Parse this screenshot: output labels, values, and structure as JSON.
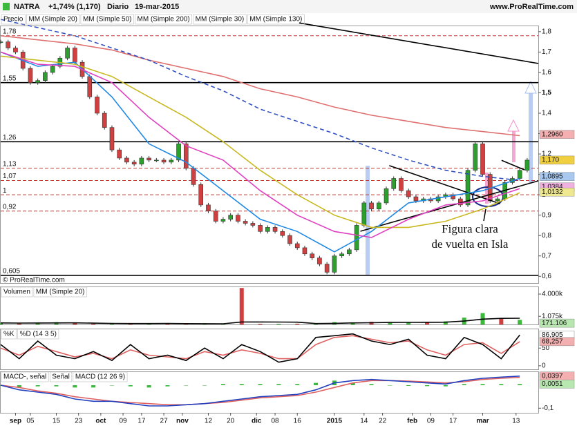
{
  "header": {
    "symbol": "NATRA",
    "change": "+1,74% (1,170)",
    "period": "Diario",
    "date": "19-mar-2015",
    "site": "www.ProRealTime.com"
  },
  "copyright": "© ProRealTime.com",
  "chart_data": [
    {
      "type": "candlestick",
      "name": "Precio",
      "up_color": "#2ca02c",
      "down_color": "#d04040",
      "x": [
        0,
        2,
        4,
        6,
        8,
        10,
        12,
        14,
        16,
        18,
        20,
        22,
        24,
        26,
        28,
        30,
        32,
        34,
        36,
        38,
        40,
        42,
        44,
        46,
        48,
        50,
        52,
        54,
        56,
        58,
        60,
        62,
        64,
        66,
        68,
        70,
        72,
        74,
        76,
        78,
        80,
        82,
        84,
        86,
        88,
        90,
        92,
        94,
        96,
        98,
        100,
        102,
        104,
        106,
        108,
        110,
        112,
        114,
        116,
        118,
        120,
        122,
        124,
        126,
        128,
        130,
        132,
        134,
        136,
        138,
        140,
        142
      ],
      "values": [
        1.75,
        1.72,
        1.7,
        1.62,
        1.55,
        1.56,
        1.6,
        1.63,
        1.67,
        1.72,
        1.65,
        1.58,
        1.48,
        1.4,
        1.33,
        1.22,
        1.18,
        1.16,
        1.15,
        1.18,
        1.17,
        1.17,
        1.16,
        1.17,
        1.25,
        1.13,
        1.05,
        0.95,
        0.92,
        0.87,
        0.88,
        0.9,
        0.87,
        0.86,
        0.85,
        0.82,
        0.84,
        0.82,
        0.8,
        0.76,
        0.74,
        0.71,
        0.69,
        0.66,
        0.62,
        0.7,
        0.71,
        0.73,
        0.85,
        0.96,
        0.93,
        0.96,
        1.03,
        1.08,
        1.02,
        0.99,
        0.97,
        0.98,
        0.97,
        0.99,
        1.0,
        0.98,
        0.95,
        1.12,
        1.25,
        1.1,
        0.97,
        0.98,
        1.06,
        1.08,
        1.12,
        1.17
      ],
      "xlim": [
        0,
        145
      ],
      "ylim": [
        0.567,
        1.83
      ],
      "yticks": [
        {
          "value": 0.6,
          "label": "0,6"
        },
        {
          "value": 0.7,
          "label": "0,7"
        },
        {
          "value": 0.8,
          "label": "0,8"
        },
        {
          "value": 0.9,
          "label": "0,9"
        },
        {
          "value": 1,
          "label": "1"
        },
        {
          "value": 1.1,
          "label": "1,1"
        },
        {
          "value": 1.2,
          "label": "1,2"
        },
        {
          "value": 1.3,
          "label": "1,3"
        },
        {
          "value": 1.4,
          "label": "1,4"
        },
        {
          "value": 1.5,
          "label": "1,5"
        },
        {
          "value": 1.6,
          "label": "1,6"
        },
        {
          "value": 1.7,
          "label": "1,7"
        },
        {
          "value": 1.8,
          "label": "1,8"
        }
      ],
      "levels": [
        {
          "value": 1.78,
          "label": "1,78",
          "color": "#d03030",
          "dashed": true
        },
        {
          "value": 1.55,
          "label": "1,55",
          "color": "#000000",
          "dashed": false
        },
        {
          "value": 1.26,
          "label": "1,26",
          "color": "#000000",
          "dashed": false
        },
        {
          "value": 1.13,
          "label": "1,13",
          "color": "#d03030",
          "dashed": true
        },
        {
          "value": 1.07,
          "label": "1,07",
          "color": "#d03030",
          "dashed": true
        },
        {
          "value": 1,
          "label": "1",
          "color": "#d03030",
          "dashed": true
        },
        {
          "value": 0.92,
          "label": "0,92",
          "color": "#d03030",
          "dashed": true
        },
        {
          "value": 0.605,
          "label": "0,605",
          "color": "#000000",
          "dashed": false
        }
      ],
      "tags": [
        {
          "value": 1.296,
          "label": "1,2960",
          "color": "#f4b0b0"
        },
        {
          "value": 1.17,
          "label": "1,170",
          "color": "#f0d040"
        },
        {
          "value": 1.0895,
          "label": "1,0895",
          "color": "#a8c8f0"
        },
        {
          "value": 1.0384,
          "label": "1,0384",
          "color": "#f0b0e0"
        },
        {
          "value": 1.0132,
          "label": "1,0132",
          "color": "#f0e890"
        }
      ],
      "trendlines": [
        {
          "x": [
            80.5,
            145
          ],
          "y": [
            1.843,
            1.644
          ]
        },
        {
          "x": [
            97,
            145
          ],
          "y": [
            0.821,
            1.068
          ]
        },
        {
          "x": [
            104.8,
            134.7
          ],
          "y": [
            1.143,
            0.956
          ]
        },
        {
          "x": [
            135.1,
            141.3
          ],
          "y": [
            1.169,
            1.122
          ]
        }
      ],
      "annotation": [
        "Figura clara",
        "de vuelta en Isla"
      ]
    },
    {
      "type": "line",
      "x": [
        0,
        10,
        20,
        30,
        40,
        50,
        60,
        70,
        80,
        90,
        100,
        110,
        120,
        130,
        140
      ],
      "xlim": [
        0,
        145
      ],
      "ylim": [
        0.567,
        1.83
      ],
      "series": [
        {
          "name": "MM (Simple 20)",
          "color": "#1e88e5",
          "dashed": false,
          "values": [
            1.7,
            1.63,
            1.65,
            1.48,
            1.25,
            1.16,
            1.02,
            0.88,
            0.82,
            0.72,
            0.82,
            0.96,
            0.99,
            1.02,
            1.08
          ]
        },
        {
          "name": "MM (Simple 50)",
          "color": "#c8b820",
          "dashed": false,
          "values": [
            1.68,
            1.66,
            1.64,
            1.58,
            1.48,
            1.38,
            1.26,
            1.12,
            1.0,
            0.9,
            0.84,
            0.84,
            0.87,
            0.93,
            1.01
          ]
        },
        {
          "name": "MM (Simple 200)",
          "color": "#e07070",
          "dashed": false,
          "values": [
            1.78,
            1.76,
            1.74,
            1.71,
            1.66,
            1.62,
            1.58,
            1.52,
            1.48,
            1.43,
            1.39,
            1.36,
            1.33,
            1.31,
            1.29
          ]
        },
        {
          "name": "MM (Simple 30)",
          "color": "#e040c0",
          "dashed": false,
          "values": [
            1.7,
            1.64,
            1.63,
            1.55,
            1.38,
            1.24,
            1.17,
            1.02,
            0.9,
            0.82,
            0.79,
            0.88,
            0.95,
            0.97,
            1.03
          ]
        },
        {
          "name": "MM (Simple 130)",
          "color": "#3050c0",
          "dashed": true,
          "values": [
            1.86,
            1.82,
            1.78,
            1.72,
            1.66,
            1.58,
            1.51,
            1.42,
            1.36,
            1.3,
            1.23,
            1.17,
            1.12,
            1.09,
            1.07
          ]
        }
      ]
    },
    {
      "type": "bar",
      "name": "Volumen",
      "name_color": "#2a9a2a",
      "color": "#3cb83c",
      "x": [
        0,
        5,
        10,
        15,
        20,
        25,
        30,
        35,
        40,
        45,
        50,
        55,
        60,
        65,
        70,
        75,
        80,
        85,
        90,
        95,
        100,
        105,
        110,
        115,
        120,
        125,
        130,
        135,
        140
      ],
      "values": [
        150000,
        120000,
        200000,
        300000,
        180000,
        100000,
        90000,
        120000,
        150000,
        100000,
        90000,
        80000,
        80000,
        4800000,
        90000,
        80000,
        100000,
        120000,
        300000,
        250000,
        350000,
        200000,
        300000,
        250000,
        400000,
        900000,
        1500000,
        800000,
        600000
      ],
      "colors": [
        "#3cb83c",
        "#d04040",
        "#3cb83c",
        "#3cb83c",
        "#d04040",
        "#d04040",
        "#3cb83c",
        "#d04040",
        "#3cb83c",
        "#d04040",
        "#d04040",
        "#3cb83c",
        "#3cb83c",
        "#d04040",
        "#d04040",
        "#3cb83c",
        "#d04040",
        "#3cb83c",
        "#3cb83c",
        "#3cb83c",
        "#d04040",
        "#3cb83c",
        "#3cb83c",
        "#d04040",
        "#3cb83c",
        "#3cb83c",
        "#3cb83c",
        "#d04040",
        "#3cb83c"
      ],
      "series": [
        {
          "name": "MM (Simple 20)",
          "color": "#000000",
          "dashed": false,
          "values": [
            200000,
            180000,
            190000,
            200000,
            210000,
            170000,
            140000,
            120000,
            120000,
            130000,
            110000,
            100000,
            90000,
            330000,
            330000,
            320000,
            300000,
            120000,
            150000,
            200000,
            230000,
            260000,
            270000,
            280000,
            300000,
            450000,
            700000,
            800000,
            820000
          ]
        }
      ],
      "xlim": [
        0,
        145
      ],
      "ylim": [
        0,
        5000000
      ],
      "yticks": [
        {
          "value": 4000000,
          "label": "4.000k"
        },
        {
          "value": 1075000,
          "label": "1.075k"
        }
      ],
      "tags": [
        {
          "value": 171106,
          "label": "171.106",
          "color": "#b8e8b0"
        }
      ]
    },
    {
      "type": "line",
      "name": "%K",
      "name_color": "#000000",
      "x": [
        0,
        5,
        10,
        15,
        20,
        25,
        30,
        35,
        40,
        45,
        50,
        55,
        60,
        65,
        70,
        75,
        80,
        85,
        90,
        95,
        100,
        105,
        110,
        115,
        120,
        125,
        130,
        135,
        140
      ],
      "series": [
        {
          "name": "%D (14 3 5)",
          "color": "#e06060",
          "dashed": false,
          "values": [
            50,
            30,
            55,
            40,
            25,
            35,
            20,
            45,
            30,
            25,
            20,
            40,
            30,
            45,
            35,
            20,
            20,
            60,
            80,
            85,
            75,
            65,
            70,
            45,
            30,
            60,
            65,
            35,
            68.257
          ]
        },
        {
          "name": null,
          "color": "#000000",
          "dashed": false,
          "values": [
            60,
            20,
            70,
            30,
            20,
            40,
            15,
            60,
            20,
            30,
            15,
            50,
            20,
            60,
            40,
            10,
            20,
            80,
            85,
            90,
            70,
            60,
            75,
            30,
            20,
            80,
            60,
            20,
            86.905
          ]
        }
      ],
      "xlim": [
        0,
        145
      ],
      "ylim": [
        -10,
        105
      ],
      "yticks": [
        50,
        0
      ],
      "tags": [
        {
          "value": 86.905,
          "label": "86,905",
          "color": "#ffffff"
        },
        {
          "value": 68.257,
          "label": "68,257",
          "color": "#f4b0b0"
        }
      ]
    },
    {
      "type": "bar",
      "name": "MACD-, señal",
      "name_color": "#2a9a2a",
      "color": "#3cb83c",
      "x": [
        0,
        5,
        10,
        15,
        20,
        25,
        30,
        35,
        40,
        45,
        50,
        55,
        60,
        65,
        70,
        75,
        80,
        85,
        90,
        95,
        100,
        105,
        110,
        115,
        120,
        125,
        130,
        135,
        140
      ],
      "values": [
        0,
        -0.01,
        -0.005,
        -0.005,
        -0.01,
        -0.01,
        0,
        -0.005,
        -0.01,
        -0.005,
        0,
        0,
        0.005,
        0.005,
        0.005,
        0.005,
        0.005,
        0.01,
        0.02,
        0.01,
        0.005,
        0,
        -0.003,
        -0.004,
        -0.005,
        0.005,
        0.005,
        0.005,
        0.0051
      ],
      "series": [
        {
          "name": "Señal",
          "color": "#e06060",
          "dashed": false,
          "values": [
            0,
            -0.01,
            -0.025,
            -0.035,
            -0.05,
            -0.06,
            -0.07,
            -0.075,
            -0.08,
            -0.085,
            -0.085,
            -0.08,
            -0.075,
            -0.065,
            -0.055,
            -0.05,
            -0.045,
            -0.03,
            -0.01,
            0.01,
            0.02,
            0.02,
            0.018,
            0.014,
            0.01,
            0.015,
            0.025,
            0.03,
            0.034
          ]
        },
        {
          "name": "MACD (12 26 9)",
          "color": "#2040c0",
          "dashed": false,
          "values": [
            0,
            -0.02,
            -0.03,
            -0.04,
            -0.06,
            -0.07,
            -0.07,
            -0.08,
            -0.09,
            -0.09,
            -0.085,
            -0.08,
            -0.07,
            -0.06,
            -0.05,
            -0.045,
            -0.04,
            -0.02,
            0.01,
            0.02,
            0.025,
            0.02,
            0.015,
            0.01,
            0.005,
            0.02,
            0.03,
            0.035,
            0.0397
          ]
        }
      ],
      "xlim": [
        0,
        145
      ],
      "ylim": [
        -0.12,
        0.06
      ],
      "yticks": [
        {
          "value": -0.1,
          "label": "-0,1"
        }
      ],
      "tags": [
        {
          "value": 0.0397,
          "label": "0,0397",
          "color": "#f4b0b0"
        },
        {
          "value": 0.0051,
          "label": "0,0051",
          "color": "#b8e8b0"
        }
      ],
      "xticks": [
        {
          "value": 4,
          "label": "sep"
        },
        {
          "value": 8,
          "label": "05"
        },
        {
          "value": 15,
          "label": "15"
        },
        {
          "value": 21,
          "label": "23"
        },
        {
          "value": 27,
          "label": "oct"
        },
        {
          "value": 33,
          "label": "09"
        },
        {
          "value": 38,
          "label": "17"
        },
        {
          "value": 44,
          "label": "27"
        },
        {
          "value": 49,
          "label": "nov"
        },
        {
          "value": 56,
          "label": "12"
        },
        {
          "value": 62,
          "label": "20"
        },
        {
          "value": 69,
          "label": "dic"
        },
        {
          "value": 74,
          "label": "08"
        },
        {
          "value": 80,
          "label": "16"
        },
        {
          "value": 90,
          "label": "2015"
        },
        {
          "value": 98,
          "label": "14"
        },
        {
          "value": 103,
          "label": "22"
        },
        {
          "value": 111,
          "label": "feb"
        },
        {
          "value": 116,
          "label": "09"
        },
        {
          "value": 122,
          "label": "17"
        },
        {
          "value": 130,
          "label": "mar"
        },
        {
          "value": 139,
          "label": "13"
        }
      ]
    }
  ]
}
